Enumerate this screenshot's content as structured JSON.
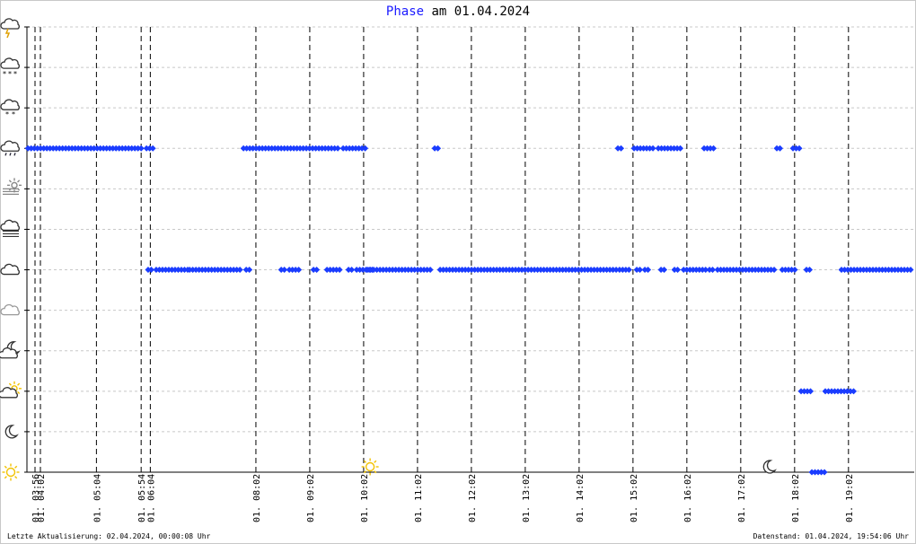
{
  "title": {
    "word": "Phase",
    "rest": "am 01.04.2024"
  },
  "footer": {
    "left": "Letzte Aktualisierung: 02.04.2024, 00:00:08 Uhr",
    "right": "Datenstand: 01.04.2024, 19:54:06 Uhr"
  },
  "colors": {
    "marker": "#1a3cff",
    "grid": "#c8c8c8",
    "axis": "#000000",
    "sun": "#f2c200",
    "icon": "#555555"
  },
  "chart_data": {
    "type": "scatter",
    "title": "Phase am 01.04.2024",
    "xlabel": "",
    "ylabel": "",
    "x_range_hours": [
      3.78,
      20.25
    ],
    "phase_levels": [
      {
        "y": 0,
        "icon": "sun-icon"
      },
      {
        "y": 1,
        "icon": "moon-icon"
      },
      {
        "y": 2,
        "icon": "sun-behind-cloud-icon"
      },
      {
        "y": 3,
        "icon": "moon-behind-cloud-icon"
      },
      {
        "y": 4,
        "icon": "cloud-gray-icon"
      },
      {
        "y": 5,
        "icon": "cloud-icon"
      },
      {
        "y": 6,
        "icon": "fog-icon"
      },
      {
        "y": 7,
        "icon": "sun-fog-icon"
      },
      {
        "y": 8,
        "icon": "rain-cloud-icon"
      },
      {
        "y": 9,
        "icon": "snow-cloud-icon"
      },
      {
        "y": 10,
        "icon": "heavy-snow-cloud-icon"
      },
      {
        "y": 11,
        "icon": "thunderstorm-icon"
      }
    ],
    "x_ticks": [
      {
        "x": 3.93,
        "label": "01. 03:56"
      },
      {
        "x": 4.03,
        "label": "01. 04:02"
      },
      {
        "x": 5.07,
        "label": "01. 05:04"
      },
      {
        "x": 5.9,
        "label": "01. 05:54"
      },
      {
        "x": 6.07,
        "label": "01. 06:04"
      },
      {
        "x": 8.03,
        "label": "01. 08:02"
      },
      {
        "x": 9.03,
        "label": "01. 09:02"
      },
      {
        "x": 10.03,
        "label": "01. 10:02"
      },
      {
        "x": 11.03,
        "label": "01. 11:02"
      },
      {
        "x": 12.03,
        "label": "01. 12:02"
      },
      {
        "x": 13.03,
        "label": "01. 13:02"
      },
      {
        "x": 14.03,
        "label": "01. 14:02"
      },
      {
        "x": 15.03,
        "label": "01. 15:02"
      },
      {
        "x": 16.03,
        "label": "01. 16:02"
      },
      {
        "x": 17.03,
        "label": "01. 17:02"
      },
      {
        "x": 18.03,
        "label": "01. 18:02"
      },
      {
        "x": 19.03,
        "label": "01. 19:02"
      }
    ],
    "series": [
      {
        "y": 8,
        "ranges": [
          [
            3.8,
            5.9
          ],
          [
            6.0,
            6.15
          ],
          [
            7.8,
            8.8
          ],
          [
            8.85,
            9.55
          ],
          [
            9.65,
            9.95
          ],
          [
            10.0,
            10.08
          ],
          [
            11.35,
            11.45
          ],
          [
            14.75,
            14.82
          ],
          [
            15.05,
            15.45
          ],
          [
            15.5,
            15.8
          ],
          [
            15.85,
            15.92
          ],
          [
            16.35,
            16.55
          ],
          [
            17.7,
            17.78
          ],
          [
            18.0,
            18.12
          ]
        ]
      },
      {
        "y": 5,
        "ranges": [
          [
            6.03,
            6.1
          ],
          [
            6.18,
            6.8
          ],
          [
            6.8,
            7.75
          ],
          [
            7.85,
            7.92
          ],
          [
            8.5,
            8.58
          ],
          [
            8.65,
            8.85
          ],
          [
            9.1,
            9.18
          ],
          [
            9.35,
            9.6
          ],
          [
            9.75,
            9.83
          ],
          [
            9.9,
            10.2
          ],
          [
            10.1,
            11.3
          ],
          [
            11.45,
            14.75
          ],
          [
            14.78,
            15.0
          ],
          [
            15.1,
            15.18
          ],
          [
            15.25,
            15.32
          ],
          [
            15.55,
            15.62
          ],
          [
            15.8,
            15.9
          ],
          [
            15.97,
            16.4
          ],
          [
            16.45,
            16.52
          ],
          [
            16.6,
            17.7
          ],
          [
            17.8,
            18.05
          ],
          [
            18.25,
            18.32
          ],
          [
            18.9,
            20.2
          ]
        ]
      },
      {
        "y": 2,
        "ranges": [
          [
            18.15,
            18.38
          ],
          [
            18.6,
            19.15
          ]
        ]
      },
      {
        "y": 0,
        "ranges": [
          [
            18.35,
            18.6
          ]
        ]
      }
    ],
    "special_markers": [
      {
        "x": 10.15,
        "y": 0,
        "icon": "sun-icon"
      },
      {
        "x": 17.55,
        "y": 0,
        "icon": "moon-icon"
      }
    ],
    "grid": true
  }
}
